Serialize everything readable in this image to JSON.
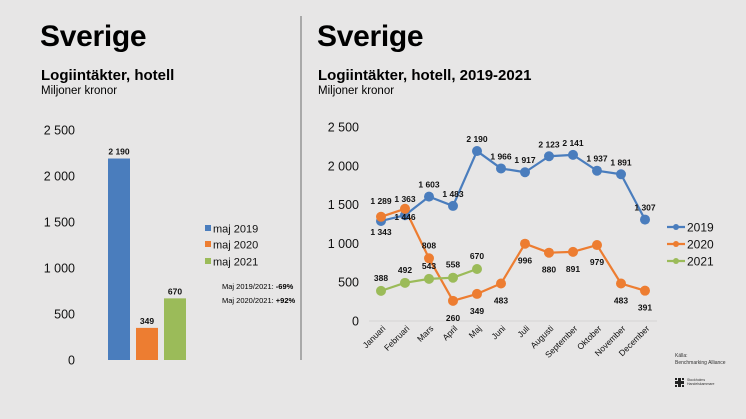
{
  "left": {
    "title": "Sverige",
    "subtitle": "Logiintäkter, hotell",
    "unit": "Miljoner kronor"
  },
  "right": {
    "title": "Sverige",
    "subtitle": "Logiintäkter, hotell, 2019-2021",
    "unit": "Miljoner kronor"
  },
  "notes": [
    {
      "label": "Maj 2019/2021: ",
      "value": "-69%"
    },
    {
      "label": "Maj 2020/2021: ",
      "value": "+92%"
    }
  ],
  "source": {
    "label": "Källa:",
    "name": "Benchmarking Alliance",
    "logo_line1": "Stockholms",
    "logo_line2": "Handelskammare"
  },
  "colors": {
    "2019": "#4a7dbd",
    "2020": "#ed7d31",
    "2021": "#9bbb59",
    "background": "#e7e6e6",
    "axis": "#d4d4d4"
  },
  "chart_data": [
    {
      "type": "bar",
      "title": "Logiintäkter, hotell",
      "subtitle": "Miljoner kronor",
      "xlabel": "",
      "ylabel": "Miljoner kronor",
      "categories": [
        "maj 2019",
        "maj 2020",
        "maj 2021"
      ],
      "values": [
        2190,
        349,
        670
      ],
      "series_colors": [
        "#4a7dbd",
        "#ed7d31",
        "#9bbb59"
      ],
      "ylim": [
        0,
        2500
      ],
      "yticks": [
        0,
        500,
        1000,
        1500,
        2000,
        2500
      ],
      "grid": false,
      "legend": [
        "maj 2019",
        "maj 2020",
        "maj 2021"
      ],
      "legend_position": "right",
      "data_labels": true
    },
    {
      "type": "line",
      "title": "Logiintäkter, hotell, 2019-2021",
      "subtitle": "Miljoner kronor",
      "xlabel": "",
      "ylabel": "Miljoner kronor",
      "categories": [
        "Januari",
        "Februari",
        "Mars",
        "April",
        "Maj",
        "Juni",
        "Juli",
        "Augusti",
        "September",
        "Oktober",
        "November",
        "December"
      ],
      "series": [
        {
          "name": "2019",
          "color": "#4a7dbd",
          "values": [
            1289,
            1363,
            1603,
            1483,
            2190,
            1966,
            1917,
            2123,
            2141,
            1937,
            1891,
            1307
          ]
        },
        {
          "name": "2020",
          "color": "#ed7d31",
          "values": [
            1343,
            1446,
            808,
            260,
            349,
            483,
            996,
            880,
            891,
            979,
            483,
            391
          ]
        },
        {
          "name": "2021",
          "color": "#9bbb59",
          "values": [
            388,
            492,
            543,
            558,
            670
          ]
        }
      ],
      "ylim": [
        0,
        2500
      ],
      "yticks": [
        0,
        500,
        1000,
        1500,
        2000,
        2500
      ],
      "grid": false,
      "legend_position": "right",
      "data_labels": true
    }
  ]
}
